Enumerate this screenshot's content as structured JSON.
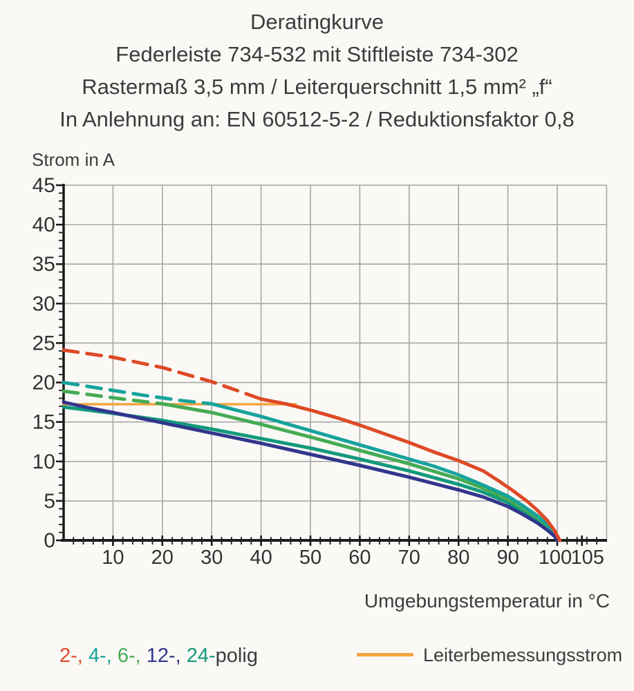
{
  "title_lines": [
    "Deratingkurve",
    "Federleiste 734-532 mit Stiftleiste 734-302",
    "Rastermaß 3,5 mm / Leiterquerschnitt 1,5 mm² „f“",
    "In Anlehnung an: EN 60512-5-2 / Reduktionsfaktor 0,8"
  ],
  "legend": {
    "poles": [
      {
        "text": "2-, ",
        "series": "2-polig"
      },
      {
        "text": "4-, ",
        "series": "4-polig"
      },
      {
        "text": "6-, ",
        "series": "6-polig"
      },
      {
        "text": "12-, ",
        "series": "12-polig"
      },
      {
        "text": "24-",
        "series": "24-polig"
      }
    ],
    "suffix": "polig",
    "rated_label": "Leiterbemessungsstrom",
    "rated_series": "Leiterbemessungsstrom"
  },
  "colors": {
    "grid": "#A6A6A6",
    "axis": "#1C1C1C",
    "text": "#3C3C3C"
  },
  "chart_data": {
    "type": "line",
    "title": "Deratingkurve",
    "xlabel": "Umgebungstemperatur in °C",
    "ylabel": "Strom in A",
    "xlim": [
      0,
      110
    ],
    "ylim": [
      0,
      45
    ],
    "grid": true,
    "legend_position": "bottom",
    "x_ticks": [
      {
        "v": 10,
        "label": "10"
      },
      {
        "v": 20,
        "label": "20"
      },
      {
        "v": 30,
        "label": "30"
      },
      {
        "v": 40,
        "label": "40"
      },
      {
        "v": 50,
        "label": "50"
      },
      {
        "v": 60,
        "label": "60"
      },
      {
        "v": 70,
        "label": "70"
      },
      {
        "v": 80,
        "label": "80"
      },
      {
        "v": 90,
        "label": "90"
      },
      {
        "v": 100,
        "label": "100",
        "dx": -3
      },
      {
        "v": 105,
        "label": "105",
        "dx": 8
      }
    ],
    "y_ticks": [
      0,
      5,
      10,
      15,
      20,
      25,
      30,
      35,
      40,
      45
    ],
    "x_gridlines": [
      10,
      20,
      30,
      40,
      50,
      60,
      70,
      80,
      90,
      100,
      110
    ],
    "y_gridlines": [
      5,
      10,
      15,
      20,
      25,
      30,
      35,
      40,
      45
    ],
    "minor_x_step": 2,
    "minor_y_step": 1,
    "series": [
      {
        "name": "Leiterbemessungsstrom",
        "color": "#F3A440",
        "width": 3.5,
        "segments": [
          {
            "style": "solid",
            "points": [
              [
                0,
                17.25
              ],
              [
                47,
                17.25
              ]
            ]
          }
        ]
      },
      {
        "name": "24-polig",
        "color": "#12997B",
        "width": 5,
        "segments": [
          {
            "style": "solid",
            "points": [
              [
                0,
                16.9
              ],
              [
                10,
                16.1
              ],
              [
                20,
                15.2
              ],
              [
                30,
                14.1
              ],
              [
                40,
                12.9
              ],
              [
                50,
                11.7
              ],
              [
                60,
                10.3
              ],
              [
                70,
                8.8
              ],
              [
                80,
                7.1
              ],
              [
                85,
                6.1
              ],
              [
                90,
                4.8
              ],
              [
                93,
                3.7
              ],
              [
                96,
                2.5
              ],
              [
                98,
                1.5
              ],
              [
                99.5,
                0.6
              ],
              [
                100,
                0
              ]
            ]
          }
        ]
      },
      {
        "name": "6-polig",
        "color": "#45AB55",
        "width": 5,
        "segments": [
          {
            "style": "dashed",
            "points": [
              [
                0,
                18.9
              ],
              [
                6,
                18.4
              ],
              [
                12,
                17.9
              ],
              [
                20,
                17.3
              ]
            ]
          },
          {
            "style": "solid",
            "points": [
              [
                20,
                17.3
              ],
              [
                30,
                16.2
              ],
              [
                40,
                14.7
              ],
              [
                50,
                13.1
              ],
              [
                60,
                11.4
              ],
              [
                70,
                9.7
              ],
              [
                80,
                7.8
              ],
              [
                85,
                6.6
              ],
              [
                90,
                5.2
              ],
              [
                93,
                4.1
              ],
              [
                96,
                2.9
              ],
              [
                98,
                1.8
              ],
              [
                99.5,
                0.8
              ],
              [
                100,
                0
              ]
            ]
          }
        ]
      },
      {
        "name": "4-polig",
        "color": "#16A39C",
        "width": 5,
        "segments": [
          {
            "style": "dashed",
            "points": [
              [
                0,
                20
              ],
              [
                8,
                19.2
              ],
              [
                16,
                18.4
              ],
              [
                24,
                17.7
              ],
              [
                30,
                17.3
              ]
            ]
          },
          {
            "style": "solid",
            "points": [
              [
                30,
                17.3
              ],
              [
                40,
                15.7
              ],
              [
                50,
                13.9
              ],
              [
                60,
                12.1
              ],
              [
                70,
                10.3
              ],
              [
                75,
                9.4
              ],
              [
                80,
                8.3
              ],
              [
                85,
                7.0
              ],
              [
                90,
                5.6
              ],
              [
                93,
                4.4
              ],
              [
                96,
                3.1
              ],
              [
                98,
                2.0
              ],
              [
                99.5,
                0.9
              ],
              [
                100,
                0
              ]
            ]
          }
        ]
      },
      {
        "name": "12-polig",
        "color": "#31368D",
        "width": 5,
        "segments": [
          {
            "style": "solid",
            "points": [
              [
                0,
                17.5
              ],
              [
                5,
                16.8
              ],
              [
                10,
                16.2
              ],
              [
                20,
                14.9
              ],
              [
                30,
                13.6
              ],
              [
                40,
                12.3
              ],
              [
                50,
                10.9
              ],
              [
                60,
                9.5
              ],
              [
                70,
                8.0
              ],
              [
                80,
                6.4
              ],
              [
                85,
                5.5
              ],
              [
                90,
                4.3
              ],
              [
                93,
                3.3
              ],
              [
                96,
                2.2
              ],
              [
                98,
                1.3
              ],
              [
                99.5,
                0.5
              ],
              [
                100,
                0
              ]
            ]
          }
        ]
      },
      {
        "name": "2-polig",
        "color": "#DE4A26",
        "width": 5,
        "segments": [
          {
            "style": "dashed",
            "points": [
              [
                0,
                24.1
              ],
              [
                10,
                23.2
              ],
              [
                20,
                21.9
              ],
              [
                30,
                20.1
              ],
              [
                36,
                18.8
              ],
              [
                40,
                17.9
              ]
            ]
          },
          {
            "style": "solid",
            "points": [
              [
                40,
                17.9
              ],
              [
                45,
                17.3
              ],
              [
                50,
                16.5
              ],
              [
                55,
                15.6
              ],
              [
                60,
                14.6
              ],
              [
                65,
                13.5
              ],
              [
                70,
                12.4
              ],
              [
                75,
                11.2
              ],
              [
                80,
                10.1
              ],
              [
                85,
                8.8
              ],
              [
                88,
                7.6
              ],
              [
                91,
                6.3
              ],
              [
                94,
                4.9
              ],
              [
                96,
                3.8
              ],
              [
                98,
                2.5
              ],
              [
                99.5,
                1.2
              ],
              [
                100.5,
                0
              ]
            ]
          }
        ]
      }
    ]
  }
}
